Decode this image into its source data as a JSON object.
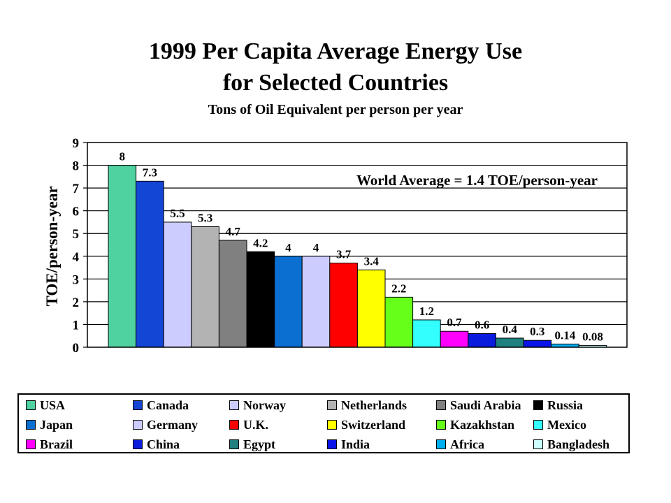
{
  "chart_data": {
    "type": "bar",
    "title_line1": "1999 Per Capita Average Energy Use",
    "title_line2": "for Selected Countries",
    "subtitle": "Tons of Oil Equivalent per person per year",
    "ylabel": "TOE/person-year",
    "xlabel": "",
    "ylim": [
      0,
      9
    ],
    "yticks": [
      "0",
      "1",
      "2",
      "3",
      "4",
      "5",
      "6",
      "7",
      "8",
      "9"
    ],
    "grid": true,
    "annotation": "World Average = 1.4 TOE/person-year",
    "legend_position": "bottom",
    "categories": [
      "USA",
      "Canada",
      "Norway",
      "Netherlands",
      "Saudi Arabia",
      "Russia",
      "Japan",
      "Germany",
      "U.K.",
      "Switzerland",
      "Kazakhstan",
      "Mexico",
      "Brazil",
      "China",
      "Egypt",
      "India",
      "Africa",
      "Bangladesh"
    ],
    "values": [
      8,
      7.3,
      5.5,
      5.3,
      4.7,
      4.2,
      4,
      4,
      3.7,
      3.4,
      2.2,
      1.2,
      0.7,
      0.6,
      0.4,
      0.3,
      0.14,
      0.08
    ],
    "value_labels": [
      "8",
      "7.3",
      "5.5",
      "5.3",
      "4.7",
      "4.2",
      "4",
      "4",
      "3.7",
      "3.4",
      "2.2",
      "1.2",
      "0.7",
      "0.6",
      "0.4",
      "0.3",
      "0.14",
      "0.08"
    ],
    "colors": [
      "#4FD1A0",
      "#1446D6",
      "#CCCCFF",
      "#B3B3B3",
      "#808080",
      "#000000",
      "#0A6FD0",
      "#CCCCFF",
      "#FF0000",
      "#FFFF00",
      "#66FF1A",
      "#33FFFF",
      "#FF00FF",
      "#0A1BDD",
      "#1F8080",
      "#0A14E6",
      "#00AEEF",
      "#CCFFFF"
    ]
  }
}
